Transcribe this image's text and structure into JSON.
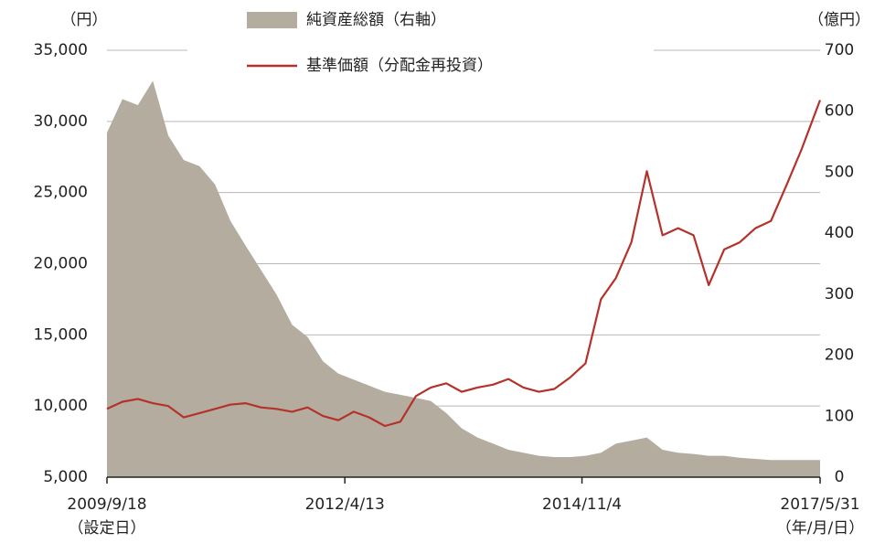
{
  "chart_data": {
    "type": "dual_axis_area_line",
    "y_label": "（円）",
    "y2_label": "（億円）",
    "x_annotations": [
      "（設定日）",
      "（年/月/日）"
    ],
    "x": [
      "2009/9/18",
      "2009/11/18",
      "2010/1/18",
      "2010/3/18",
      "2010/5/18",
      "2010/7/18",
      "2010/9/18",
      "2010/11/18",
      "2011/1/18",
      "2011/3/18",
      "2011/5/18",
      "2011/7/18",
      "2011/9/18",
      "2011/11/18",
      "2012/1/18",
      "2012/3/18",
      "2012/5/18",
      "2012/7/18",
      "2012/9/18",
      "2012/11/18",
      "2013/1/18",
      "2013/3/18",
      "2013/5/18",
      "2013/7/18",
      "2013/9/18",
      "2013/11/18",
      "2014/1/18",
      "2014/3/18",
      "2014/5/18",
      "2014/7/18",
      "2014/9/18",
      "2014/11/18",
      "2015/1/18",
      "2015/3/18",
      "2015/5/18",
      "2015/7/18",
      "2015/9/18",
      "2015/11/18",
      "2016/1/18",
      "2016/3/18",
      "2016/5/18",
      "2016/7/18",
      "2016/9/18",
      "2016/11/18",
      "2017/1/18",
      "2017/3/18",
      "2017/5/31"
    ],
    "series": [
      {
        "name": "純資産総額（右軸）",
        "color": "#b4ad9f",
        "axis": "y2",
        "kind": "area",
        "values": [
          565,
          620,
          610,
          650,
          560,
          520,
          510,
          480,
          420,
          380,
          340,
          300,
          250,
          230,
          190,
          170,
          160,
          150,
          140,
          135,
          130,
          125,
          105,
          80,
          65,
          55,
          45,
          40,
          35,
          33,
          33,
          35,
          40,
          55,
          60,
          65,
          45,
          40,
          38,
          35,
          35,
          32,
          30,
          28,
          28,
          28,
          28
        ]
      },
      {
        "name": "基準価額（分配金再投資）",
        "color": "#b5322a",
        "axis": "y",
        "kind": "line",
        "values": [
          9800,
          10300,
          10500,
          10200,
          10000,
          9200,
          9500,
          9800,
          10100,
          10200,
          9900,
          9800,
          9600,
          9900,
          9300,
          9000,
          9600,
          9200,
          8600,
          8900,
          10700,
          11300,
          11600,
          11000,
          11300,
          11500,
          11900,
          11300,
          11000,
          11200,
          12000,
          13000,
          17500,
          19000,
          21500,
          26500,
          22000,
          22500,
          22000,
          18500,
          21000,
          21500,
          22500,
          23000,
          25500,
          28000,
          31500
        ]
      }
    ],
    "xlim": [
      "2009/9/18",
      "2017/5/31"
    ],
    "xticks": [
      "2009/9/18",
      "2012/4/13",
      "2014/11/4",
      "2017/5/31"
    ],
    "ylim": [
      5000,
      35000
    ],
    "yticks": [
      {
        "value": 5000,
        "label": "5,000"
      },
      {
        "value": 10000,
        "label": "10,000"
      },
      {
        "value": 15000,
        "label": "15,000"
      },
      {
        "value": 20000,
        "label": "20,000"
      },
      {
        "value": 25000,
        "label": "25,000"
      },
      {
        "value": 30000,
        "label": "30,000"
      },
      {
        "value": 35000,
        "label": "35,000"
      }
    ],
    "y2lim": [
      0,
      700
    ],
    "y2ticks": [
      0,
      100,
      200,
      300,
      400,
      500,
      600,
      700
    ],
    "grid": true
  }
}
